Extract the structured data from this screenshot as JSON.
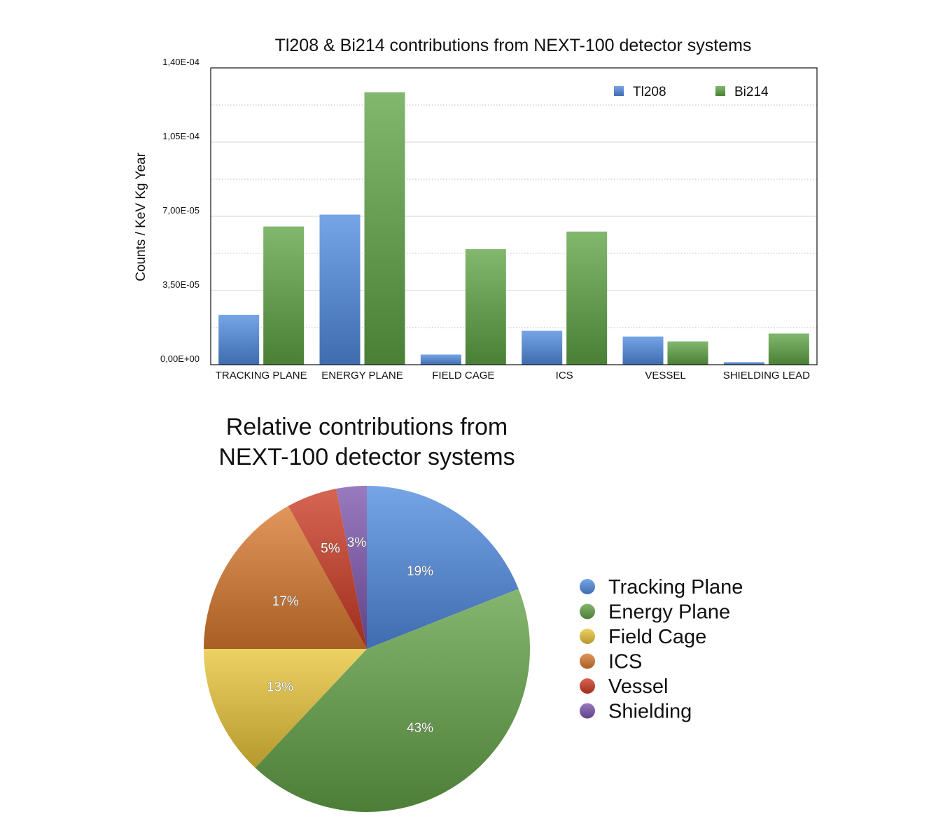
{
  "chart_data": [
    {
      "type": "bar",
      "title": "Tl208 & Bi214 contributions from NEXT-100 detector systems",
      "xlabel": "",
      "ylabel": "Counts  /  KeV  Kg  Year",
      "ylim": [
        0,
        0.00014
      ],
      "y_ticks": [
        "0,00E+00",
        "3,50E-05",
        "7,00E-05",
        "1,05E-04",
        "1,40E-04"
      ],
      "y_tick_values": [
        0,
        3.5e-05,
        7e-05,
        0.000105,
        0.00014
      ],
      "grid": true,
      "legend_position": "top-right",
      "categories": [
        "TRACKING PLANE",
        "ENERGY PLANE",
        "FIELD CAGE",
        "ICS",
        "VESSEL",
        "SHIELDING LEAD"
      ],
      "series": [
        {
          "name": "Tl208",
          "color": "#4f8be0",
          "values": [
            2.35e-05,
            7.08e-05,
            4.8e-06,
            1.6e-05,
            1.33e-05,
            1.2e-06
          ]
        },
        {
          "name": "Bi214",
          "color": "#5fa345",
          "values": [
            6.52e-05,
            0.0001285,
            5.45e-05,
            6.28e-05,
            1.1e-05,
            1.47e-05
          ]
        }
      ]
    },
    {
      "type": "pie",
      "title_lines": [
        "Relative contributions from",
        "NEXT-100 detector systems"
      ],
      "legend_position": "right",
      "slices": [
        {
          "name": "Tracking Plane",
          "value": 19,
          "label": "19%",
          "color": "#4f8be0"
        },
        {
          "name": "Energy Plane",
          "value": 43,
          "label": "43%",
          "color": "#62a146"
        },
        {
          "name": "Field Cage",
          "value": 13,
          "label": "13%",
          "color": "#e8c43a"
        },
        {
          "name": "ICS",
          "value": 17,
          "label": "17%",
          "color": "#d9782e"
        },
        {
          "name": "Vessel",
          "value": 5,
          "label": "5%",
          "color": "#cc3a22"
        },
        {
          "name": "Shielding",
          "value": 3,
          "label": "3%",
          "color": "#7d55ad"
        }
      ]
    }
  ]
}
